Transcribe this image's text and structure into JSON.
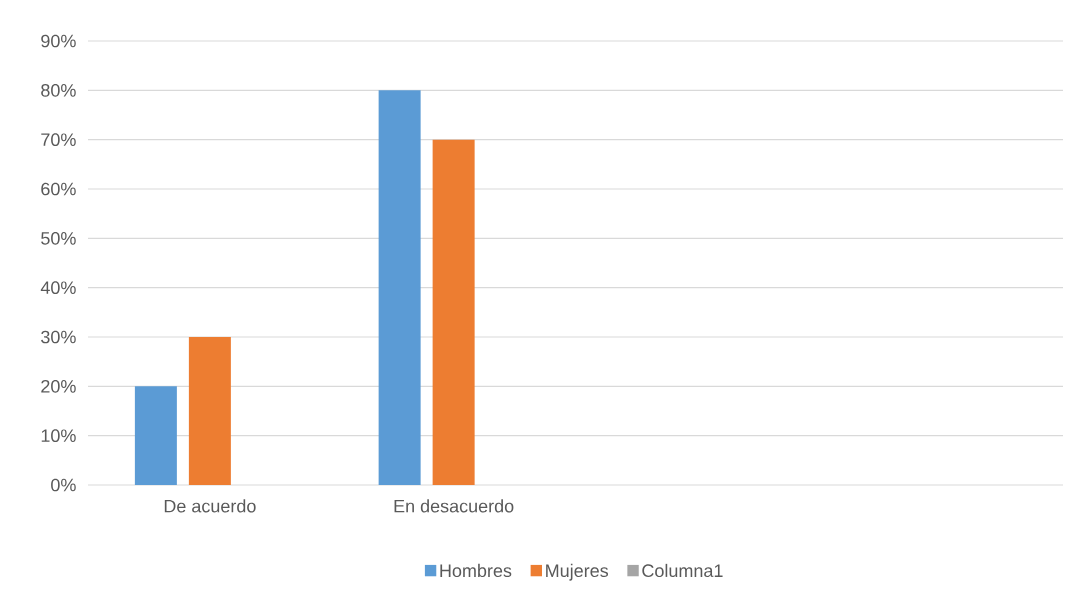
{
  "chart_data": {
    "type": "bar",
    "categories": [
      "De acuerdo",
      "En desacuerdo",
      null,
      null
    ],
    "series": [
      {
        "name": "Hombres",
        "color": "#5b9bd5",
        "values": [
          20,
          80,
          null,
          null
        ]
      },
      {
        "name": "Mujeres",
        "color": "#ed7d31",
        "values": [
          30,
          70,
          null,
          null
        ]
      },
      {
        "name": "Columna1",
        "color": "#a5a5a5",
        "values": [
          null,
          null,
          null,
          null
        ]
      }
    ],
    "ylim": [
      0,
      90
    ],
    "yticks": [
      {
        "value": 0,
        "label": "0%"
      },
      {
        "value": 10,
        "label": "10%"
      },
      {
        "value": 20,
        "label": "20%"
      },
      {
        "value": 30,
        "label": "30%"
      },
      {
        "value": 40,
        "label": "40%"
      },
      {
        "value": 50,
        "label": "50%"
      },
      {
        "value": 60,
        "label": "60%"
      },
      {
        "value": 70,
        "label": "70%"
      },
      {
        "value": 80,
        "label": "80%"
      },
      {
        "value": 90,
        "label": "90%"
      }
    ],
    "grid": "y",
    "legend": "bottom"
  }
}
